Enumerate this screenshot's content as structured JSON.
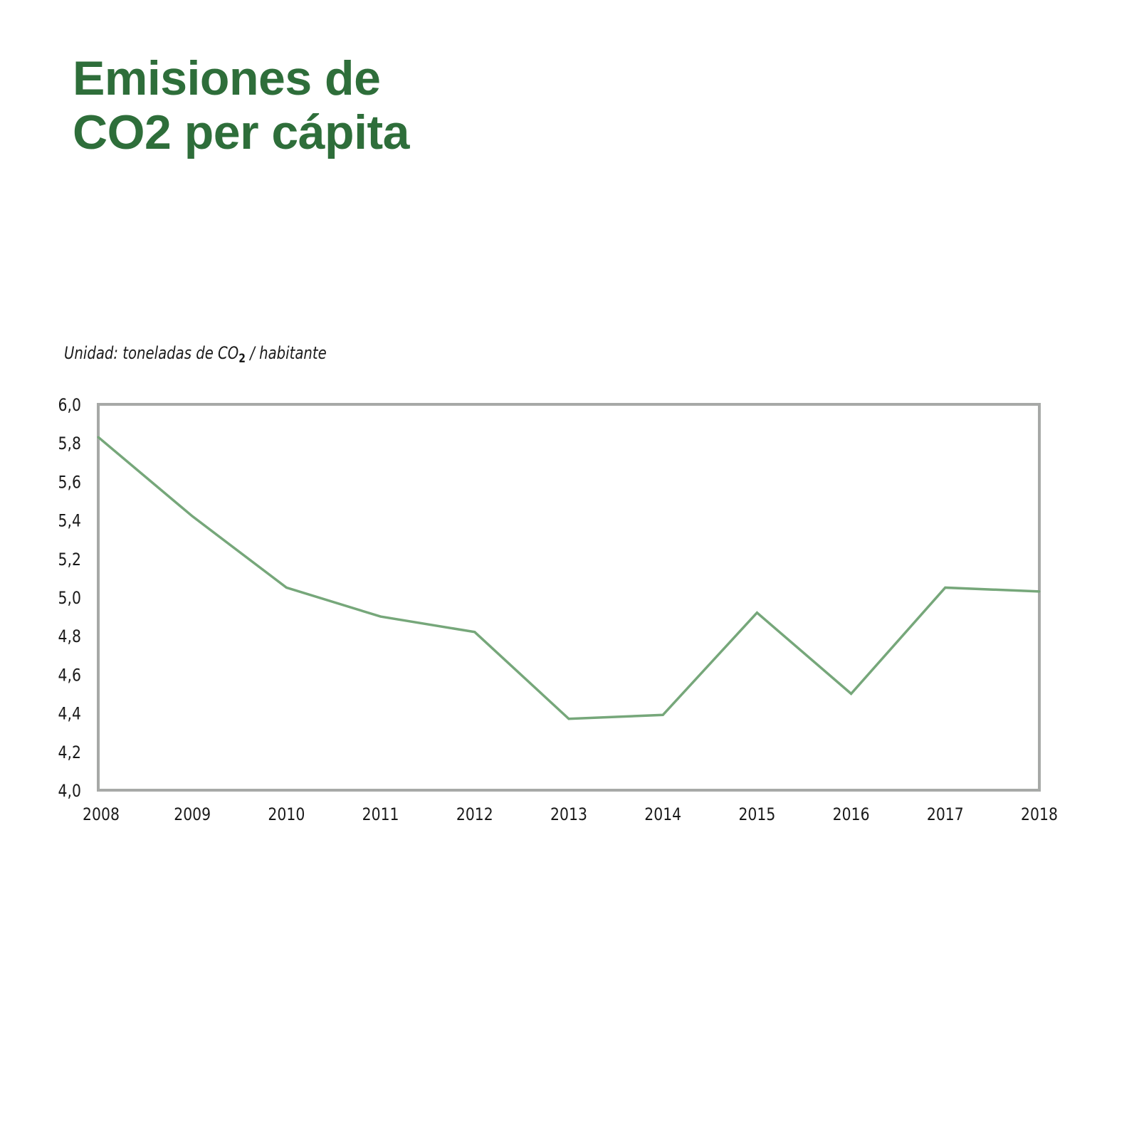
{
  "header": {
    "title_line1": "Emisiones de",
    "title_line2": "CO2 per cápita"
  },
  "unit_label": {
    "prefix": "Unidad: toneladas de CO",
    "subscript": "2",
    "suffix": " / habitante"
  },
  "colors": {
    "title": "#2e6e3a",
    "line": "#76a77a",
    "frame": "#a7a9a7",
    "text": "#1a1a1a"
  },
  "chart_data": {
    "type": "line",
    "title": "Emisiones de CO2 per cápita",
    "subtitle": "Unidad: toneladas de CO2 / habitante",
    "xlabel": "",
    "ylabel": "",
    "x": [
      "2008",
      "2009",
      "2010",
      "2011",
      "2012",
      "2013",
      "2014",
      "2015",
      "2016",
      "2017",
      "2018"
    ],
    "series": [
      {
        "name": "Emisiones de CO2 per cápita",
        "values": [
          5.83,
          5.42,
          5.05,
          4.9,
          4.82,
          4.37,
          4.39,
          4.92,
          4.5,
          5.05,
          5.03
        ]
      }
    ],
    "ylim": [
      4.0,
      6.0
    ],
    "yticks": [
      "4,0",
      "4,2",
      "4,4",
      "4,6",
      "4,8",
      "5,0",
      "5,2",
      "5,4",
      "5,6",
      "5,8",
      "6,0"
    ],
    "ytick_values": [
      4.0,
      4.2,
      4.4,
      4.6,
      4.8,
      5.0,
      5.2,
      5.4,
      5.6,
      5.8,
      6.0
    ],
    "grid": false,
    "legend": "none"
  }
}
